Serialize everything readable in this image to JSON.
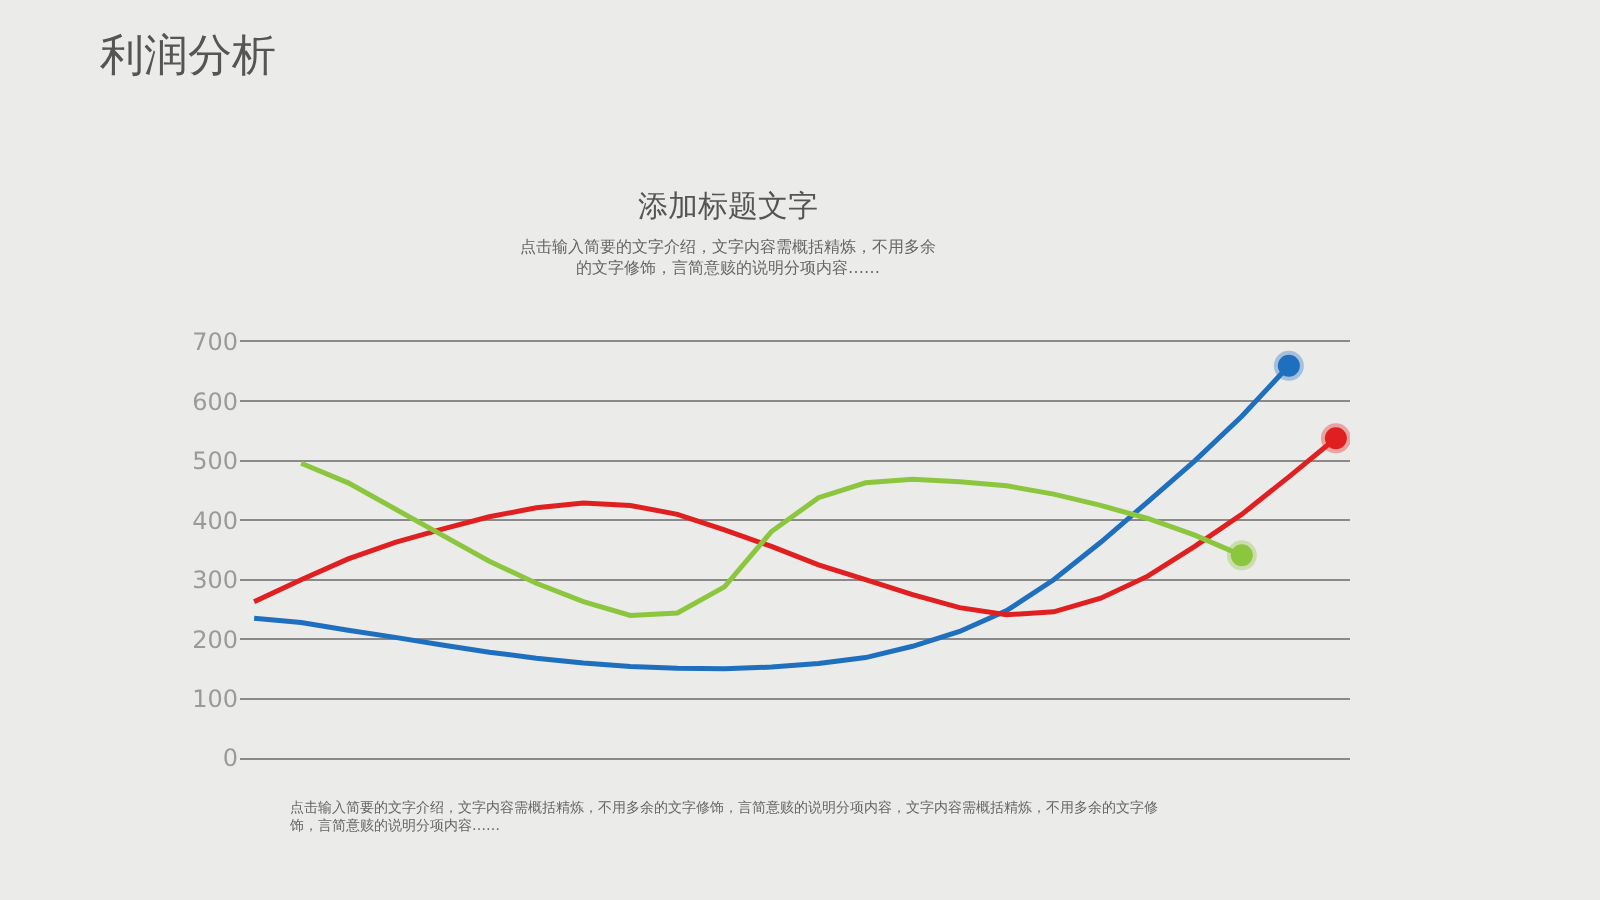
{
  "chart_data": {
    "type": "line",
    "title": "添加标题文字",
    "subtitle": "点击输入简要的文字介绍，文字内容需概括精炼，不用多余的文字修饰，言简意赅的说明分项内容……",
    "annotations": [
      "利润分析",
      "点击输入简要的文字介绍，文字内容需概括精炼，不用多余的文字修饰，言简意赅的说明分项内容，文字内容需概括精炼，不用多余的文字修饰，言简意赅的说明分项内容……"
    ],
    "categories": [
      null,
      null,
      null,
      null,
      null,
      null,
      null,
      null,
      null,
      null,
      null,
      null,
      null,
      null,
      null,
      null,
      null,
      null,
      null,
      null,
      null,
      null,
      null,
      null
    ],
    "series": [
      {
        "color": "#1f6fbf",
        "values": [
          235,
          228,
          215,
          203,
          190,
          178,
          168,
          160,
          154,
          151,
          150,
          153,
          159,
          169,
          188,
          213,
          248,
          300,
          363,
          431,
          500,
          575,
          660,
          null
        ]
      },
      {
        "color": "#e02020",
        "values": [
          263,
          300,
          335,
          363,
          385,
          406,
          421,
          429,
          425,
          410,
          384,
          356,
          325,
          300,
          275,
          253,
          241,
          246,
          269,
          306,
          356,
          410,
          473,
          538
        ]
      },
      {
        "color": "#8cc63f",
        "values": [
          null,
          496,
          463,
          419,
          375,
          331,
          294,
          263,
          240,
          244,
          288,
          381,
          438,
          463,
          469,
          465,
          458,
          444,
          425,
          403,
          375,
          341,
          null,
          null
        ]
      }
    ],
    "ylim": [
      0,
      700
    ],
    "yticks": [
      0,
      100,
      200,
      300,
      400,
      500,
      600,
      700
    ],
    "grid": "y",
    "tick_labels": "y",
    "line_style": "solid"
  }
}
